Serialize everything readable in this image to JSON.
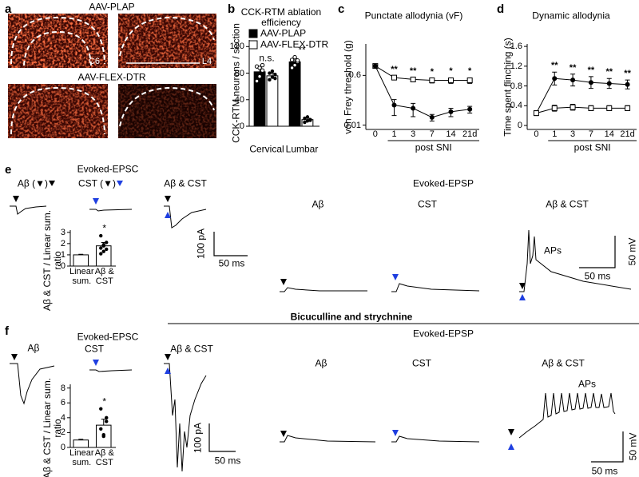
{
  "panel_labels": [
    "a",
    "b",
    "c",
    "d",
    "e",
    "f"
  ],
  "panel_a": {
    "top": "AAV-PLAP",
    "bottom": "AAV-FLEX-DTR",
    "left_region": "C6",
    "right_region": "L4"
  },
  "chart_data": [
    {
      "type": "bar",
      "title": "CCK-RTM ablation efficiency",
      "ylabel": "CCK-RTM neurons / section",
      "categories": [
        "Cervical",
        "Lumbar"
      ],
      "series": [
        {
          "name": "AAV-PLAP",
          "color": "#000000",
          "values": [
            82,
            97
          ],
          "errors": [
            7,
            5
          ],
          "points": [
            [
              68,
              75,
              84,
              90,
              88,
              92
            ],
            [
              88,
              92,
              97,
              100,
              104,
              99
            ]
          ]
        },
        {
          "name": "AAV-FLEX-DTR",
          "color": "#ffffff",
          "values": [
            76,
            10
          ],
          "errors": [
            4,
            2
          ],
          "points": [
            [
              70,
              74,
              78,
              80,
              83,
              72
            ],
            [
              6,
              8,
              10,
              12,
              14,
              9
            ]
          ]
        }
      ],
      "annotations": [
        "n.s.",
        "**"
      ],
      "ylim": [
        0,
        130
      ],
      "yticks": [
        0,
        40,
        80,
        120
      ]
    },
    {
      "type": "line",
      "title": "Punctate allodynia (vF)",
      "ylabel": "von Frey threshold (g)",
      "xlabel": "post SNI",
      "log_scale": true,
      "categories": [
        "0",
        "1",
        "3",
        "7",
        "14",
        "21d"
      ],
      "series": [
        {
          "marker": "open-square",
          "color": "#000000",
          "values": [
            1.3,
            0.5,
            0.43,
            0.4,
            0.4,
            0.4
          ],
          "errors": [
            0.1,
            0.08,
            0.08,
            0.08,
            0.09,
            0.09
          ]
        },
        {
          "marker": "filled-circle",
          "color": "#000000",
          "values": [
            1.3,
            0.052,
            0.04,
            0.019,
            0.03,
            0.037
          ],
          "errors": [
            0.1,
            0.03,
            0.02,
            0.005,
            0.01,
            0.01
          ]
        }
      ],
      "significance": [
        null,
        "**",
        "**",
        "*",
        "*",
        "*"
      ],
      "ylim": [
        0.007,
        8
      ],
      "yticks": [
        0.01,
        0.6
      ]
    },
    {
      "type": "line",
      "title": "Dynamic allodynia",
      "ylabel": "Time spent flinching (s)",
      "xlabel": "post SNI",
      "categories": [
        "0",
        "1",
        "3",
        "7",
        "14",
        "21d"
      ],
      "series": [
        {
          "marker": "filled-circle",
          "color": "#000000",
          "values": [
            0.25,
            0.95,
            0.92,
            0.87,
            0.85,
            0.83
          ],
          "errors": [
            0.05,
            0.13,
            0.12,
            0.12,
            0.1,
            0.09
          ]
        },
        {
          "marker": "open-square",
          "color": "#000000",
          "values": [
            0.25,
            0.35,
            0.37,
            0.35,
            0.35,
            0.35
          ],
          "errors": [
            0.04,
            0.06,
            0.06,
            0.05,
            0.05,
            0.05
          ]
        }
      ],
      "significance": [
        null,
        "**",
        "**",
        "**",
        "**",
        "**"
      ],
      "ylim": [
        -0.08,
        1.65
      ],
      "yticks": [
        0,
        0.4,
        0.8,
        1.2,
        1.6
      ]
    },
    {
      "type": "bar",
      "ylabel": "Aβ & CST / Linear sum. ratio",
      "categories": [
        "Linear sum.",
        "Aβ & CST"
      ],
      "series": [
        {
          "color": "#ffffff",
          "values": [
            1.0,
            1.8
          ],
          "errors": [
            0.05,
            0.3
          ],
          "points": [
            [],
            [
              1.1,
              1.3,
              1.5,
              1.6,
              1.9,
              2.1,
              2.7,
              1.8
            ]
          ]
        }
      ],
      "annotations": [
        null,
        "*"
      ],
      "ylim": [
        0,
        3.2
      ],
      "yticks": [
        0,
        1,
        2,
        3
      ]
    },
    {
      "type": "bar",
      "ylabel": "Aβ & CST / Linear sum. ratio",
      "categories": [
        "Linear sum.",
        "Aβ & CST"
      ],
      "series": [
        {
          "color": "#ffffff",
          "values": [
            1.0,
            3.0
          ],
          "errors": [
            0.1,
            0.8
          ],
          "points": [
            [],
            [
              2.5,
              1.7,
              3.5,
              5.2,
              1.5,
              4.0
            ]
          ]
        }
      ],
      "annotations": [
        null,
        "*"
      ],
      "ylim": [
        0,
        8.5
      ],
      "yticks": [
        0,
        2,
        4,
        6,
        8
      ]
    }
  ],
  "panel_e": {
    "epsc_title": "Evoked-EPSC",
    "trace_labels": [
      "Aβ (▼)",
      "CST (▼)",
      "Aβ & CST"
    ],
    "epsc_scale": [
      "100 pA",
      "50 ms"
    ],
    "epsp_title": "Evoked-EPSP",
    "epsp_labels": [
      "Aβ",
      "CST",
      "Aβ & CST"
    ],
    "spikes": "APs",
    "epsp_scale": [
      "50 mV",
      "50 ms"
    ]
  },
  "divider": "Bicuculline and strychnine",
  "panel_f": {
    "epsc_title": "Evoked-EPSC",
    "trace_labels": [
      "Aβ",
      "CST",
      "Aβ & CST"
    ],
    "epsc_scale": [
      "100 pA",
      "50 ms"
    ],
    "epsp_title": "Evoked-EPSP",
    "epsp_labels": [
      "Aβ",
      "CST",
      "Aβ & CST"
    ],
    "spikes": "APs",
    "epsp_scale": [
      "50 mV",
      "50 ms"
    ]
  }
}
